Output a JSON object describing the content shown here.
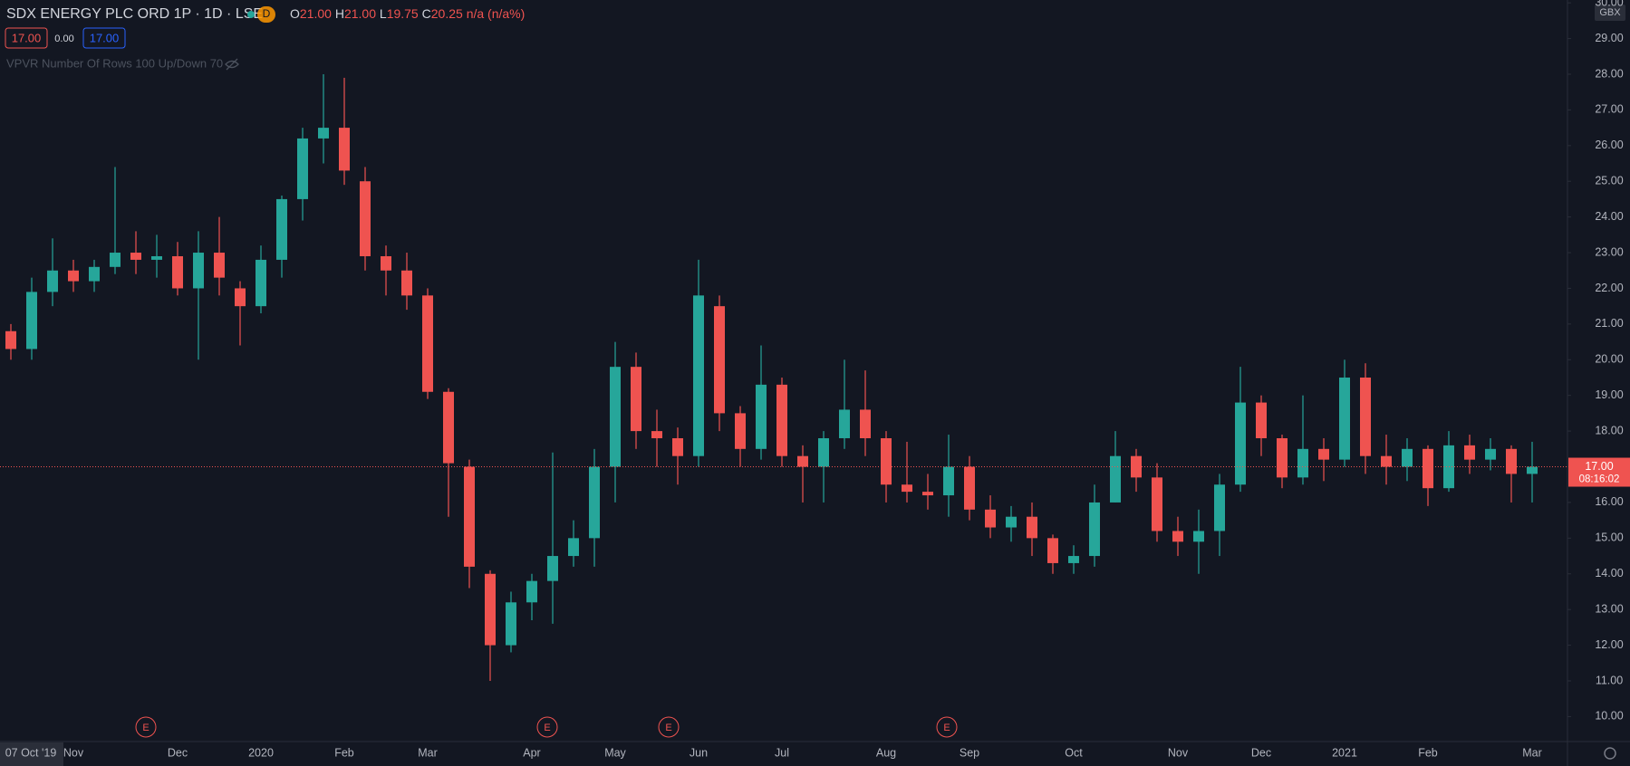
{
  "chart_data": {
    "type": "candlestick",
    "title": "SDX ENERGY PLC ORD 1P · 1D · LSE",
    "interval_badge": "D",
    "readout": [
      {
        "key": "O",
        "text": "21.00"
      },
      {
        "key": "H",
        "text": "21.00"
      },
      {
        "key": "L",
        "text": "19.75"
      },
      {
        "key": "C",
        "text": "20.25"
      },
      {
        "key": "n/a (n/a%)",
        "text": ""
      }
    ],
    "order_boxes": [
      "17.00",
      "0.00",
      "17.00"
    ],
    "indicator": "VPVR Number Of Rows 100 Up/Down 70",
    "currency": "GBX",
    "earnings_markers": [
      "E",
      "E",
      "E",
      "E"
    ],
    "last_price": {
      "value": 17,
      "label": "17.00"
    },
    "countdown": "08:16:02",
    "up_color": "#26a69a",
    "down_color": "#ef5350",
    "grid": false,
    "ylim": [
      9.3,
      30.08
    ],
    "yticks": [
      {
        "value": 10,
        "label": "10.00"
      },
      {
        "value": 11,
        "label": "11.00"
      },
      {
        "value": 12,
        "label": "12.00"
      },
      {
        "value": 13,
        "label": "13.00"
      },
      {
        "value": 14,
        "label": "14.00"
      },
      {
        "value": 15,
        "label": "15.00"
      },
      {
        "value": 16,
        "label": "16.00"
      },
      {
        "value": 17,
        "label": "17.00"
      },
      {
        "value": 18,
        "label": "18.00"
      },
      {
        "value": 19,
        "label": "19.00"
      },
      {
        "value": 20,
        "label": "20.00"
      },
      {
        "value": 21,
        "label": "21.00"
      },
      {
        "value": 22,
        "label": "22.00"
      },
      {
        "value": 23,
        "label": "23.00"
      },
      {
        "value": 24,
        "label": "24.00"
      },
      {
        "value": 25,
        "label": "25.00"
      },
      {
        "value": 26,
        "label": "26.00"
      },
      {
        "value": 27,
        "label": "27.00"
      },
      {
        "value": 28,
        "label": "28.00"
      },
      {
        "value": 29,
        "label": "29.00"
      },
      {
        "value": 30,
        "label": "30.00"
      }
    ],
    "categories": [
      "07 Oct '19",
      null,
      null,
      "Nov",
      null,
      null,
      null,
      null,
      "Dec",
      null,
      null,
      null,
      "2020",
      null,
      null,
      null,
      "Feb",
      null,
      null,
      null,
      "Mar",
      null,
      null,
      null,
      null,
      "Apr",
      null,
      null,
      null,
      "May",
      null,
      null,
      null,
      "Jun",
      null,
      null,
      null,
      "Jul",
      null,
      null,
      null,
      null,
      "Aug",
      null,
      null,
      null,
      "Sep",
      null,
      null,
      null,
      null,
      "Oct",
      null,
      null,
      null,
      null,
      "Nov",
      null,
      null,
      null,
      "Dec",
      null,
      null,
      null,
      "2021",
      null,
      null,
      null,
      "Feb",
      null,
      null,
      null,
      null,
      "Mar"
    ],
    "open": [
      20.8,
      20.3,
      21.9,
      22.5,
      22.2,
      22.6,
      23.0,
      22.8,
      22.9,
      22.0,
      23.0,
      22.0,
      21.5,
      22.8,
      24.5,
      26.2,
      26.5,
      25.0,
      22.9,
      22.5,
      21.8,
      19.1,
      17.0,
      14.0,
      12.0,
      13.2,
      13.8,
      14.5,
      15.0,
      17.0,
      19.8,
      18.0,
      17.8,
      17.3,
      21.5,
      18.5,
      17.5,
      19.3,
      17.3,
      17.0,
      17.8,
      18.6,
      17.8,
      16.5,
      16.3,
      16.2,
      17.0,
      15.8,
      15.3,
      15.6,
      15.0,
      14.3,
      14.5,
      16.0,
      17.3,
      16.7,
      15.2,
      14.9,
      15.2,
      16.5,
      18.8,
      17.8,
      16.7,
      17.5,
      17.2,
      19.5,
      17.3,
      17.0,
      17.5,
      16.4,
      17.6,
      17.2,
      17.5,
      16.8
    ],
    "high": [
      21.0,
      22.3,
      23.4,
      22.8,
      22.8,
      25.4,
      23.6,
      23.5,
      23.3,
      23.6,
      24.0,
      22.2,
      23.2,
      24.6,
      26.5,
      28.0,
      27.9,
      25.4,
      23.2,
      23.0,
      22.0,
      19.2,
      17.2,
      14.1,
      13.5,
      14.0,
      17.4,
      15.5,
      17.5,
      20.5,
      20.2,
      18.6,
      18.1,
      22.8,
      21.8,
      18.7,
      20.4,
      19.5,
      17.6,
      18.0,
      20.0,
      19.7,
      18.0,
      17.7,
      16.8,
      17.9,
      17.3,
      16.2,
      15.9,
      16.0,
      15.1,
      14.8,
      16.5,
      18.0,
      17.5,
      17.1,
      15.6,
      15.8,
      16.8,
      19.8,
      19.0,
      17.9,
      19.0,
      17.8,
      20.0,
      19.9,
      17.9,
      17.8,
      17.6,
      18.0,
      17.9,
      17.8,
      17.6,
      17.7
    ],
    "low": [
      20.0,
      20.0,
      21.5,
      21.9,
      21.9,
      22.4,
      22.4,
      22.3,
      21.8,
      20.0,
      21.8,
      20.4,
      21.3,
      22.3,
      23.9,
      25.5,
      24.9,
      22.5,
      21.8,
      21.4,
      18.9,
      15.6,
      13.6,
      11.0,
      11.8,
      12.7,
      12.6,
      14.2,
      14.2,
      16.0,
      17.5,
      17.0,
      16.5,
      17.0,
      18.0,
      17.0,
      17.2,
      17.0,
      16.0,
      16.0,
      17.5,
      17.3,
      16.0,
      16.0,
      15.8,
      15.6,
      15.5,
      15.0,
      14.9,
      14.5,
      14.0,
      14.0,
      14.2,
      16.0,
      16.3,
      14.9,
      14.5,
      14.0,
      14.5,
      16.3,
      17.3,
      16.4,
      16.5,
      16.6,
      17.0,
      16.8,
      16.5,
      16.6,
      15.9,
      16.3,
      16.8,
      16.9,
      16.0,
      16.0
    ],
    "close": [
      20.3,
      21.9,
      22.5,
      22.2,
      22.6,
      23.0,
      22.8,
      22.9,
      22.0,
      23.0,
      22.3,
      21.5,
      22.8,
      24.5,
      26.2,
      26.5,
      25.3,
      22.9,
      22.5,
      21.8,
      19.1,
      17.1,
      14.2,
      12.0,
      13.2,
      13.8,
      14.5,
      15.0,
      17.0,
      19.8,
      18.0,
      17.8,
      17.3,
      21.8,
      18.5,
      17.5,
      19.3,
      17.3,
      17.0,
      17.8,
      18.6,
      17.8,
      16.5,
      16.3,
      16.2,
      17.0,
      15.8,
      15.3,
      15.6,
      15.0,
      14.3,
      14.5,
      16.0,
      17.3,
      16.7,
      15.2,
      14.9,
      15.2,
      16.5,
      18.8,
      17.8,
      16.7,
      17.5,
      17.2,
      19.5,
      17.3,
      17.0,
      17.5,
      16.4,
      17.6,
      17.2,
      17.5,
      16.8,
      17.0
    ]
  }
}
